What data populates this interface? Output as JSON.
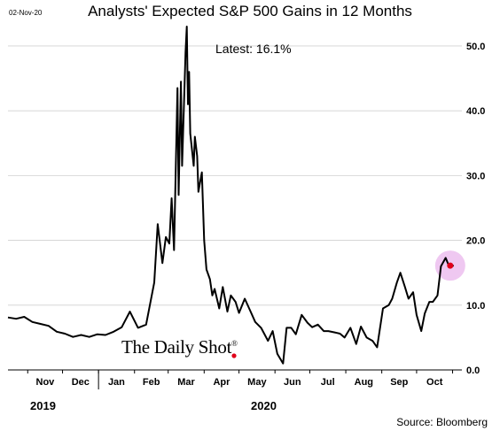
{
  "date_stamp": "02-Nov-20",
  "brand": {
    "text": "The Daily Shot",
    "reg_mark": "®"
  },
  "source": "Source: Bloomberg",
  "annotation": "Latest:  16.1%",
  "colors": {
    "line": "#000000",
    "highlight_fill": "#e9b6ec",
    "dot": "#e0001a",
    "grid": "#d0d0d0"
  },
  "chart_data": {
    "type": "line",
    "title": "Analysts' Expected S&P 500 Gains in 12 Months",
    "xlabel": "",
    "ylabel": "",
    "y_axis_side": "right",
    "ylim": [
      0,
      53
    ],
    "yticks": [
      0,
      10,
      20,
      30,
      40,
      50
    ],
    "ytick_labels": [
      "0.0",
      "10.0",
      "20.0",
      "30.0",
      "40.0",
      "50.0"
    ],
    "grid": "horizontal",
    "x_tick_labels": [
      "Nov",
      "Dec",
      "Jan",
      "Feb",
      "Mar",
      "Apr",
      "May",
      "Jun",
      "Jul",
      "Aug",
      "Sep",
      "Oct"
    ],
    "year_labels": [
      "2019",
      "2020"
    ],
    "series": [
      {
        "x": [
          "2019-10-15",
          "2019-10-22",
          "2019-10-29",
          "2019-11-05",
          "2019-11-12",
          "2019-11-19",
          "2019-11-26",
          "2019-12-03",
          "2019-12-10",
          "2019-12-17",
          "2019-12-24",
          "2019-12-31",
          "2020-01-07",
          "2020-01-14",
          "2020-01-21",
          "2020-01-28",
          "2020-02-04",
          "2020-02-11",
          "2020-02-18",
          "2020-02-21",
          "2020-02-25",
          "2020-02-28",
          "2020-03-02",
          "2020-03-04",
          "2020-03-06",
          "2020-03-09",
          "2020-03-10",
          "2020-03-12",
          "2020-03-13",
          "2020-03-16",
          "2020-03-17",
          "2020-03-18",
          "2020-03-19",
          "2020-03-20",
          "2020-03-23",
          "2020-03-24",
          "2020-03-26",
          "2020-03-27",
          "2020-03-30",
          "2020-04-01",
          "2020-04-03",
          "2020-04-06",
          "2020-04-08",
          "2020-04-10",
          "2020-04-14",
          "2020-04-17",
          "2020-04-21",
          "2020-04-24",
          "2020-04-28",
          "2020-05-01",
          "2020-05-06",
          "2020-05-11",
          "2020-05-15",
          "2020-05-20",
          "2020-05-26",
          "2020-05-30",
          "2020-06-03",
          "2020-06-08",
          "2020-06-11",
          "2020-06-15",
          "2020-06-19",
          "2020-06-24",
          "2020-06-29",
          "2020-07-03",
          "2020-07-08",
          "2020-07-13",
          "2020-07-17",
          "2020-07-22",
          "2020-07-27",
          "2020-07-31",
          "2020-08-05",
          "2020-08-10",
          "2020-08-14",
          "2020-08-19",
          "2020-08-24",
          "2020-08-28",
          "2020-09-02",
          "2020-09-07",
          "2020-09-10",
          "2020-09-14",
          "2020-09-17",
          "2020-09-21",
          "2020-09-24",
          "2020-09-28",
          "2020-10-01",
          "2020-10-05",
          "2020-10-08",
          "2020-10-12",
          "2020-10-15",
          "2020-10-19",
          "2020-10-22",
          "2020-10-26",
          "2020-10-29",
          "2020-11-02"
        ],
        "values": [
          8.1,
          7.9,
          8.2,
          7.4,
          7.1,
          6.8,
          5.9,
          5.6,
          5.1,
          5.4,
          5.1,
          5.5,
          5.4,
          5.9,
          6.6,
          9.0,
          6.5,
          7.0,
          13.5,
          22.5,
          16.5,
          20.5,
          19.5,
          26.5,
          18.5,
          43.5,
          27.0,
          44.5,
          31.5,
          49.0,
          53.0,
          41.0,
          46.0,
          36.5,
          31.5,
          36.0,
          33.0,
          27.5,
          30.5,
          20.0,
          15.5,
          14.0,
          11.5,
          12.5,
          9.5,
          12.8,
          9.0,
          11.5,
          10.5,
          8.8,
          11.0,
          9.0,
          7.4,
          6.5,
          4.5,
          6.0,
          2.5,
          1.0,
          6.5,
          6.5,
          5.5,
          8.5,
          7.3,
          6.6,
          7.0,
          6.0,
          6.0,
          5.8,
          5.6,
          5.0,
          6.5,
          4.0,
          6.7,
          5.0,
          4.5,
          3.5,
          9.5,
          10.0,
          11.0,
          13.5,
          15.0,
          12.8,
          11.0,
          12.0,
          8.5,
          6.0,
          8.7,
          10.5,
          10.5,
          11.5,
          16.0,
          17.3,
          16.0,
          16.1
        ]
      }
    ],
    "latest_value": 16.1
  }
}
